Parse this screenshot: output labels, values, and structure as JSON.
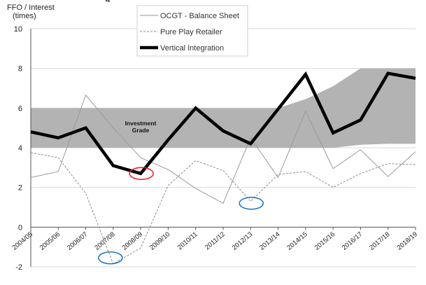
{
  "chart_data": {
    "type": "line",
    "title_partial": "g",
    "ylabel": [
      "FFO / Interest",
      "(times)"
    ],
    "ylim": [
      -2,
      10
    ],
    "y_ticks": [
      -2,
      0,
      2,
      4,
      6,
      8,
      10
    ],
    "categories": [
      "2004/05",
      "2005/06",
      "2006/07",
      "2007/08",
      "2008/09",
      "2009/10",
      "2010/11",
      "2011/12",
      "2012/13",
      "2013/14",
      "2014/15",
      "2015/16",
      "2016/17",
      "2017/18",
      "2018/19"
    ],
    "band": {
      "label": [
        "Investment",
        "Grade"
      ],
      "color": "#b3b3b3",
      "lower": [
        4,
        4,
        4,
        4,
        4,
        4,
        4,
        4,
        4,
        4,
        4,
        4,
        4.15,
        4.2,
        4.2
      ],
      "upper": [
        6,
        6,
        6,
        6,
        6,
        6,
        6,
        6,
        6,
        6,
        6.45,
        7.1,
        8.0,
        8.0,
        8.0
      ]
    },
    "series": [
      {
        "name": "OCGT - Balance Sheet",
        "style": "thin-solid",
        "color": "#9a9a9a",
        "values": [
          2.5,
          2.8,
          6.65,
          5.0,
          3.5,
          2.9,
          1.95,
          1.2,
          4.5,
          2.5,
          5.85,
          2.95,
          3.9,
          2.55,
          3.8
        ]
      },
      {
        "name": "Pure Play Retailer",
        "style": "dashed",
        "color": "#8a8a8a",
        "values": [
          3.75,
          3.5,
          1.7,
          -1.85,
          -1.05,
          2.1,
          3.35,
          2.85,
          1.3,
          2.65,
          2.8,
          2.0,
          2.7,
          3.2,
          3.15
        ]
      },
      {
        "name": "Vertical Integration",
        "style": "thick-solid",
        "color": "#000000",
        "values": [
          4.8,
          4.5,
          5.0,
          3.1,
          2.7,
          4.4,
          6.0,
          4.85,
          4.2,
          5.95,
          7.7,
          4.75,
          5.4,
          7.75,
          7.5
        ]
      }
    ],
    "highlights": [
      {
        "color": "#e8212a",
        "at_category": "2008/09",
        "y": 2.7
      },
      {
        "color": "#1e78c8",
        "at_category": "2007/08",
        "y": -1.55
      },
      {
        "color": "#1e78c8",
        "at_category": "2012/13",
        "y": 1.2
      }
    ],
    "legend_position": "top-center",
    "grid": "horizontal"
  }
}
